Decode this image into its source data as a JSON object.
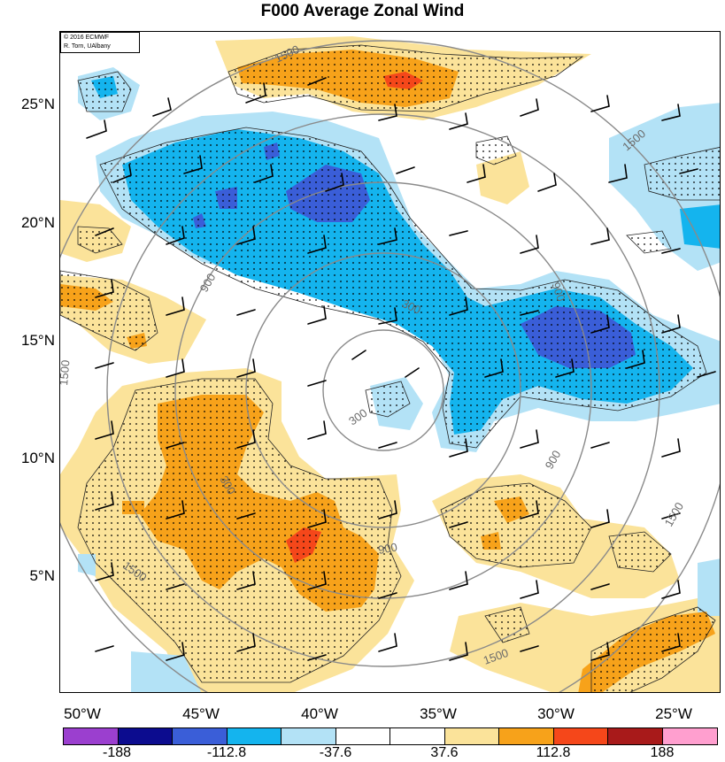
{
  "title": "F000 Average Zonal Wind",
  "credit": {
    "line1": "© 2016 ECMWF",
    "line2": "R. Torn, UAlbany"
  },
  "lat_labels": [
    "25°N",
    "20°N",
    "15°N",
    "10°N",
    "5°N"
  ],
  "lon_labels": [
    "50°W",
    "45°W",
    "40°W",
    "35°W",
    "30°W",
    "25°W"
  ],
  "colorbar": {
    "colors": [
      "#9b3fcf",
      "#0c0c8f",
      "#3a5ed8",
      "#14b4ee",
      "#b3e2f6",
      "#ffffff",
      "#ffffff",
      "#fbe39a",
      "#f7a21a",
      "#f5471a",
      "#a81a1a",
      "#ff9fcf"
    ],
    "labels": [
      "-188",
      "-112.8",
      "-37.6",
      "37.6",
      "112.8",
      "188"
    ]
  },
  "contour_labels": [
    "1500",
    "1500",
    "1500",
    "1500",
    "1500",
    "1500",
    "900",
    "900",
    "900",
    "900",
    "300",
    "300",
    "300"
  ],
  "colors": {
    "neg_strong": "#3a5ed8",
    "neg_mid": "#14b4ee",
    "neg_weak": "#b3e2f6",
    "pos_weak": "#fbe39a",
    "pos_mid": "#f7a21a",
    "pos_strong": "#f5471a",
    "range_ring": "#8a8a8a"
  }
}
